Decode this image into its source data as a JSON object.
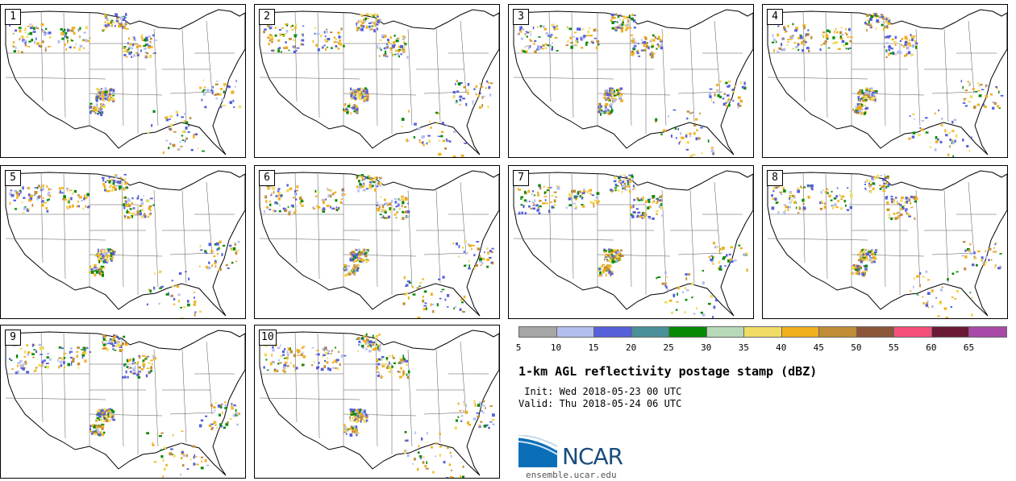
{
  "panels": [
    {
      "label": "1"
    },
    {
      "label": "2"
    },
    {
      "label": "3"
    },
    {
      "label": "4"
    },
    {
      "label": "5"
    },
    {
      "label": "6"
    },
    {
      "label": "7"
    },
    {
      "label": "8"
    },
    {
      "label": "9"
    },
    {
      "label": "10"
    }
  ],
  "colorbar": {
    "ticks": [
      "5",
      "10",
      "15",
      "20",
      "25",
      "30",
      "35",
      "40",
      "45",
      "50",
      "55",
      "60",
      "65"
    ],
    "colors": [
      "#a6a6a6",
      "#b4bff0",
      "#5660d8",
      "#4a9099",
      "#068a06",
      "#b8d9b8",
      "#f0dc64",
      "#f0b020",
      "#c08c36",
      "#8c5638",
      "#f4507a",
      "#6a1a34",
      "#a84aa8"
    ]
  },
  "title": "1-km AGL reflectivity postage stamp (dBZ)",
  "init_text": " Init: Wed 2018-05-23 00 UTC",
  "valid_text": "Valid: Thu 2018-05-24 06 UTC",
  "logo": {
    "text": "NCAR",
    "icon": "ncar-logo-icon"
  },
  "website": "ensemble.ucar.edu"
}
